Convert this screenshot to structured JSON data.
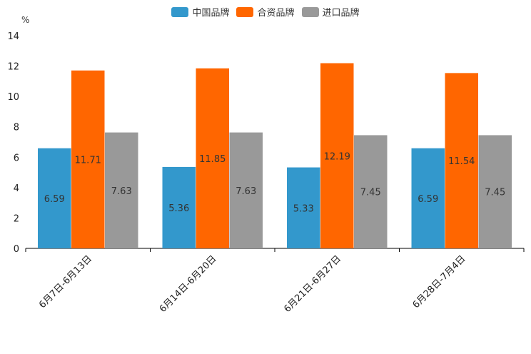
{
  "chart_data": {
    "type": "bar",
    "unit": "%",
    "categories": [
      "6月7日-6月13日",
      "6月14日-6月20日",
      "6月21日-6月27日",
      "6月28日-7月4日"
    ],
    "series": [
      {
        "name": "中国品牌",
        "color": "#3398cc",
        "values": [
          6.59,
          5.36,
          5.33,
          6.59
        ]
      },
      {
        "name": "合资品牌",
        "color": "#ff6600",
        "values": [
          11.71,
          11.85,
          12.19,
          11.54
        ]
      },
      {
        "name": "进口品牌",
        "color": "#999999",
        "values": [
          7.63,
          7.63,
          7.45,
          7.45
        ]
      }
    ],
    "ylim": [
      0,
      14
    ],
    "yticks": [
      0,
      2,
      4,
      6,
      8,
      10,
      12,
      14
    ],
    "legend_position": "top-center",
    "grid": false
  }
}
